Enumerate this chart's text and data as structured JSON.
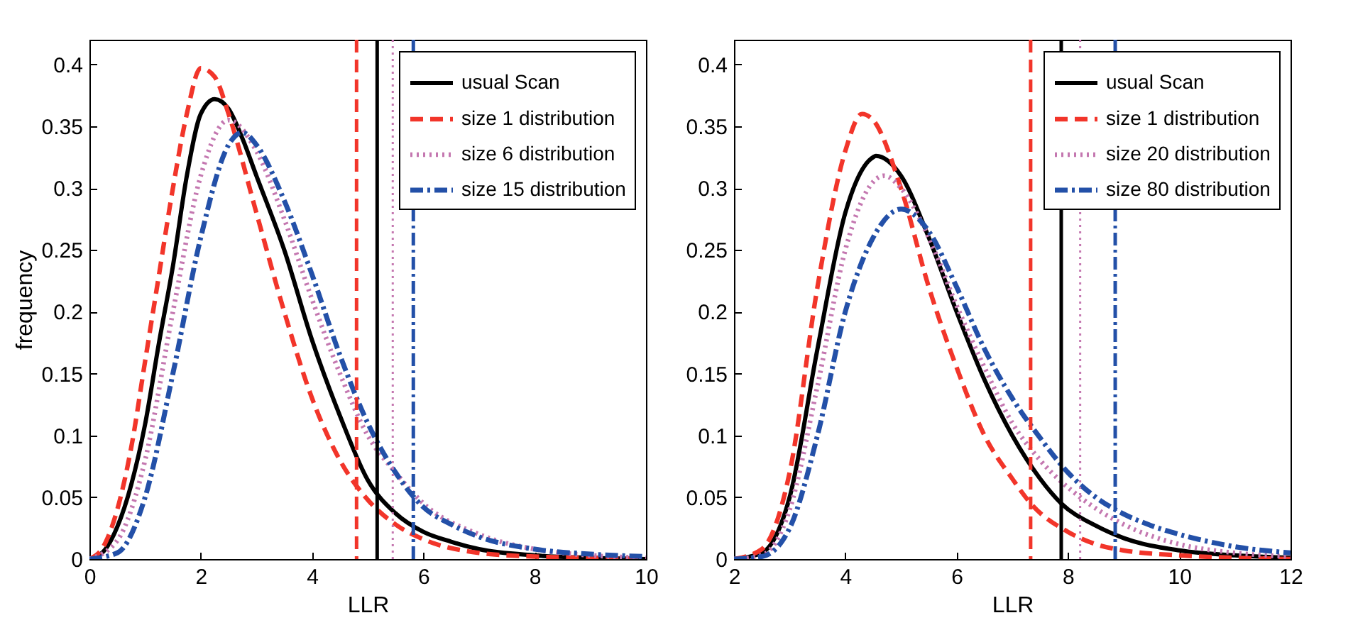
{
  "chart_data": [
    {
      "type": "line",
      "xlabel": "LLR",
      "ylabel": "frequency",
      "xlim": [
        0,
        10
      ],
      "xticks": [
        0,
        2,
        4,
        6,
        8,
        10
      ],
      "ylim": [
        0,
        0.42
      ],
      "yticks": [
        0,
        0.05,
        0.1,
        0.15,
        0.2,
        0.25,
        0.3,
        0.35,
        0.4
      ],
      "legend": "top right",
      "grid": false,
      "series": [
        {
          "name": "usual Scan",
          "color": "#000000",
          "line_style": "solid",
          "x": [
            0,
            0.25,
            0.5,
            0.75,
            1,
            1.25,
            1.5,
            1.75,
            2,
            2.25,
            2.5,
            2.75,
            3,
            3.5,
            4,
            4.5,
            5,
            5.5,
            6,
            6.5,
            7,
            8,
            9,
            10
          ],
          "values": [
            0,
            0.006,
            0.026,
            0.06,
            0.109,
            0.175,
            0.237,
            0.31,
            0.36,
            0.372,
            0.364,
            0.34,
            0.31,
            0.25,
            0.177,
            0.116,
            0.064,
            0.037,
            0.022,
            0.014,
            0.008,
            0.003,
            0.001,
            0
          ]
        },
        {
          "name": "size 1 distribution",
          "color": "#f2352a",
          "line_style": "dashed",
          "x": [
            0,
            0.25,
            0.5,
            0.75,
            1,
            1.25,
            1.5,
            1.75,
            2,
            2.25,
            2.5,
            3,
            3.5,
            4,
            4.5,
            5,
            5.5,
            6,
            7,
            8,
            9,
            10
          ],
          "values": [
            0,
            0.01,
            0.04,
            0.09,
            0.16,
            0.23,
            0.3,
            0.36,
            0.397,
            0.39,
            0.36,
            0.28,
            0.2,
            0.13,
            0.08,
            0.048,
            0.028,
            0.016,
            0.005,
            0.002,
            0.001,
            0
          ]
        },
        {
          "name": "size 6 distribution",
          "color": "#c477b0",
          "line_style": "dotted",
          "x": [
            0,
            0.5,
            1,
            1.5,
            2,
            2.5,
            3,
            3.5,
            4,
            4.5,
            5,
            5.5,
            6,
            7,
            8,
            9,
            10
          ],
          "values": [
            0,
            0.015,
            0.08,
            0.2,
            0.31,
            0.355,
            0.33,
            0.275,
            0.21,
            0.15,
            0.1,
            0.07,
            0.045,
            0.02,
            0.008,
            0.003,
            0.001
          ]
        },
        {
          "name": "size 15 distribution",
          "color": "#2350a8",
          "line_style": "dashdot",
          "x": [
            0,
            0.5,
            1,
            1.5,
            2,
            2.5,
            2.75,
            3,
            3.5,
            4,
            4.5,
            5,
            5.5,
            6,
            6.5,
            7,
            8,
            9,
            10
          ],
          "values": [
            0,
            0.005,
            0.05,
            0.15,
            0.26,
            0.335,
            0.345,
            0.335,
            0.29,
            0.23,
            0.165,
            0.11,
            0.07,
            0.042,
            0.028,
            0.018,
            0.008,
            0.004,
            0.002
          ]
        }
      ],
      "ref_lines": [
        {
          "axis": "x",
          "value": 4.8,
          "color": "#f2352a",
          "line_style": "dashed"
        },
        {
          "axis": "x",
          "value": 5.17,
          "color": "#000000",
          "line_style": "solid"
        },
        {
          "axis": "x",
          "value": 5.45,
          "color": "#c477b0",
          "line_style": "dotted"
        },
        {
          "axis": "x",
          "value": 5.82,
          "color": "#2350a8",
          "line_style": "dashdot"
        }
      ]
    },
    {
      "type": "line",
      "xlabel": "LLR",
      "xlim": [
        2,
        12
      ],
      "xticks": [
        2,
        4,
        6,
        8,
        10,
        12
      ],
      "ylim": [
        0,
        0.42
      ],
      "yticks": [
        0,
        0.05,
        0.1,
        0.15,
        0.2,
        0.25,
        0.3,
        0.35,
        0.4
      ],
      "legend": "top right",
      "grid": false,
      "series": [
        {
          "name": "usual Scan",
          "color": "#000000",
          "line_style": "solid",
          "x": [
            2,
            2.5,
            3,
            3.5,
            4,
            4.5,
            4.55,
            5,
            5.5,
            6,
            6.5,
            7,
            7.5,
            7.88,
            8.5,
            9,
            10,
            11,
            12
          ],
          "values": [
            0,
            0.005,
            0.05,
            0.17,
            0.28,
            0.325,
            0.326,
            0.31,
            0.26,
            0.2,
            0.145,
            0.1,
            0.065,
            0.045,
            0.027,
            0.017,
            0.007,
            0.003,
            0.001
          ]
        },
        {
          "name": "size 1 distribution",
          "color": "#f2352a",
          "line_style": "dashed",
          "x": [
            2,
            2.5,
            3,
            3.5,
            4,
            4.3,
            4.5,
            5,
            5.5,
            6,
            6.5,
            7,
            7.33,
            8,
            8.5,
            9,
            10,
            11,
            12
          ],
          "values": [
            0,
            0.008,
            0.07,
            0.22,
            0.33,
            0.36,
            0.355,
            0.3,
            0.22,
            0.155,
            0.1,
            0.065,
            0.045,
            0.022,
            0.012,
            0.007,
            0.003,
            0.001,
            0
          ]
        },
        {
          "name": "size 20 distribution",
          "color": "#c477b0",
          "line_style": "dotted",
          "x": [
            2,
            2.5,
            3,
            3.5,
            4,
            4.5,
            4.7,
            5,
            5.5,
            6,
            6.5,
            7,
            7.5,
            8.22,
            9,
            10,
            11,
            12
          ],
          "values": [
            0,
            0.003,
            0.04,
            0.14,
            0.25,
            0.305,
            0.31,
            0.3,
            0.26,
            0.205,
            0.155,
            0.11,
            0.08,
            0.05,
            0.028,
            0.012,
            0.005,
            0.002
          ]
        },
        {
          "name": "size 80 distribution",
          "color": "#2350a8",
          "line_style": "dashdot",
          "x": [
            2,
            2.5,
            3,
            3.5,
            4,
            4.5,
            5,
            5.5,
            6,
            6.5,
            7,
            7.5,
            8,
            8.5,
            8.85,
            9.5,
            10,
            11,
            12
          ],
          "values": [
            0,
            0.002,
            0.025,
            0.1,
            0.2,
            0.26,
            0.283,
            0.265,
            0.22,
            0.17,
            0.13,
            0.098,
            0.07,
            0.05,
            0.04,
            0.027,
            0.02,
            0.01,
            0.005
          ]
        }
      ],
      "ref_lines": [
        {
          "axis": "x",
          "value": 7.33,
          "color": "#f2352a",
          "line_style": "dashed"
        },
        {
          "axis": "x",
          "value": 7.88,
          "color": "#000000",
          "line_style": "solid"
        },
        {
          "axis": "x",
          "value": 8.22,
          "color": "#c477b0",
          "line_style": "dotted"
        },
        {
          "axis": "x",
          "value": 8.85,
          "color": "#2350a8",
          "line_style": "dashdot"
        }
      ]
    }
  ]
}
